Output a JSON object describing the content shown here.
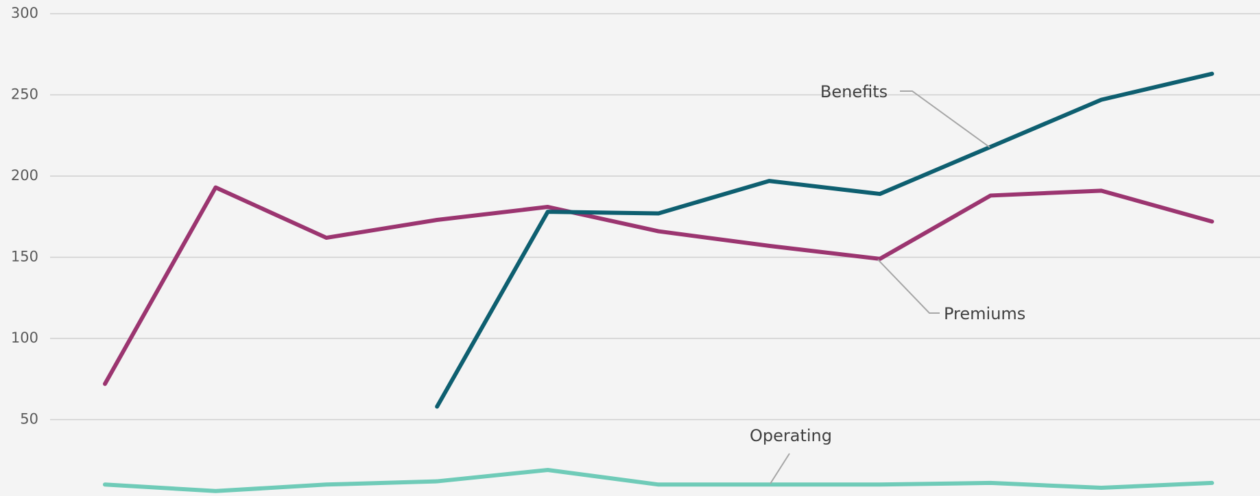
{
  "chart_data": {
    "type": "line",
    "categories": [
      null,
      null,
      null,
      null,
      null,
      null,
      null,
      null,
      null,
      null,
      null
    ],
    "series": [
      {
        "name": "Premiums",
        "color": "#9b3570",
        "values": [
          72,
          193,
          162,
          173,
          181,
          166,
          157,
          149,
          188,
          191,
          172
        ]
      },
      {
        "name": "Benefits",
        "color": "#0e5f70",
        "values": [
          null,
          null,
          null,
          58,
          178,
          177,
          197,
          189,
          218,
          247,
          263
        ]
      },
      {
        "name": "Operating",
        "color": "#6fcbb8",
        "values": [
          10,
          6,
          10,
          12,
          19,
          10,
          10,
          10,
          11,
          8,
          11
        ]
      }
    ],
    "ylim": [
      0,
      300
    ],
    "yticks": [
      50,
      100,
      150,
      200,
      250,
      300
    ],
    "grid": true
  }
}
